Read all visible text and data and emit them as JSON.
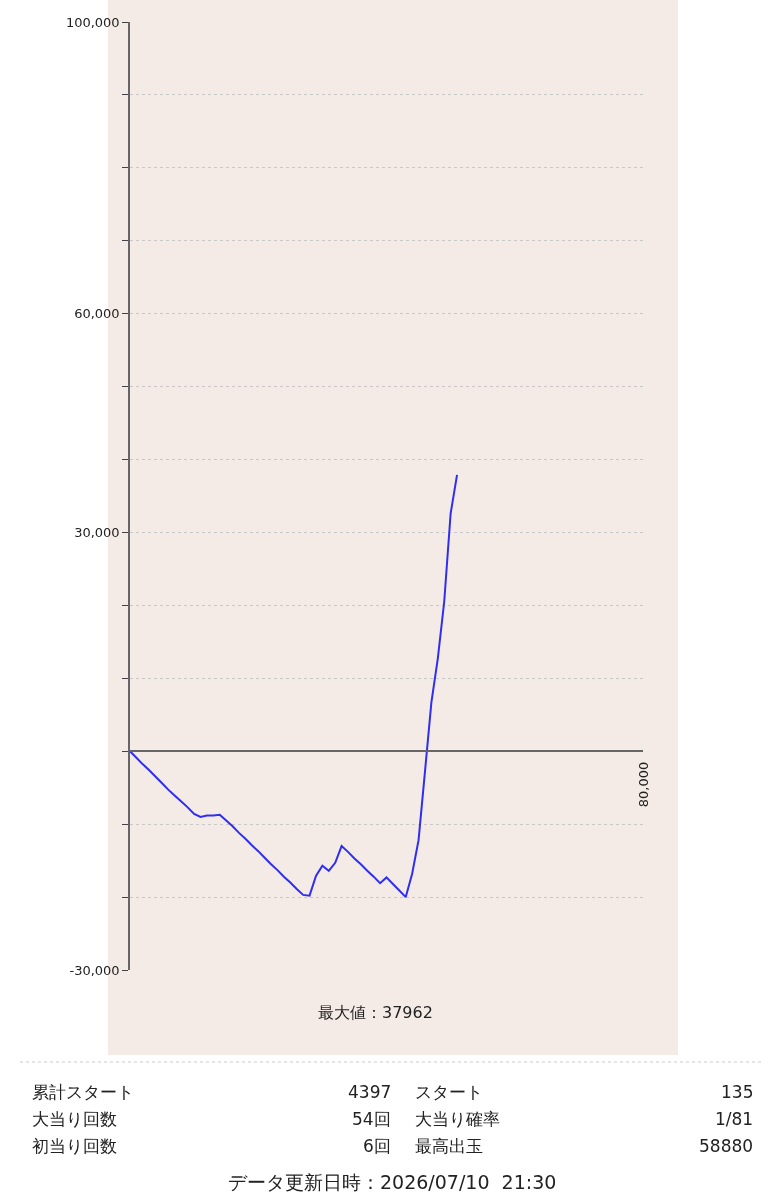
{
  "chart_data": {
    "type": "line",
    "categories": [
      null,
      null,
      null,
      null,
      null,
      null,
      null,
      null,
      null,
      null,
      null,
      null,
      null,
      null,
      null,
      null,
      null,
      null,
      null,
      null,
      null,
      null,
      null,
      null,
      null,
      null,
      null,
      null,
      null,
      null,
      null,
      null,
      null,
      null,
      null,
      null,
      null,
      null,
      null,
      null,
      null,
      null,
      null,
      null,
      null,
      null,
      null,
      null,
      null,
      null,
      null,
      null,
      null,
      null,
      null,
      null,
      null,
      null,
      null,
      null,
      null,
      null,
      null,
      null,
      null,
      null,
      null,
      null,
      null,
      null,
      null,
      null,
      null,
      null,
      null,
      null,
      null,
      null,
      null,
      null,
      null
    ],
    "series": [
      {
        "color": "#2e2ef2",
        "values": [
          0,
          -900,
          -1800,
          -2600,
          -3500,
          -4400,
          -5300,
          -6100,
          -6900,
          -7700,
          -8600,
          -9000,
          -8800,
          -8800,
          -8700,
          -9500,
          -10300,
          -11200,
          -12000,
          -12900,
          -13700,
          -14600,
          -15500,
          -16300,
          -17200,
          -18000,
          -18900,
          -19700,
          -19800,
          -17100,
          -15700,
          -16400,
          -15300,
          -13000,
          -13800,
          -14700,
          -15500,
          -16400,
          -17200,
          -18100,
          -17300,
          -18200,
          -19100,
          -20000,
          -16800,
          -12200,
          -2800,
          6700,
          12700,
          20500,
          32600,
          37900,
          null,
          null,
          null,
          null,
          null,
          null,
          null,
          null,
          null,
          null,
          null,
          null,
          null,
          null,
          null,
          null,
          null,
          null,
          null,
          null,
          null,
          null,
          null,
          null,
          null,
          null,
          null,
          null,
          null
        ]
      }
    ],
    "ylim": [
      -30000,
      100000
    ],
    "yticks": [
      {
        "value": 100000,
        "label": "100,000"
      },
      {
        "value": 90000,
        "label": null
      },
      {
        "value": 80000,
        "label": null
      },
      {
        "value": 70000,
        "label": null
      },
      {
        "value": 60000,
        "label": "60,000"
      },
      {
        "value": 50000,
        "label": null
      },
      {
        "value": 40000,
        "label": null
      },
      {
        "value": 30000,
        "label": "30,000"
      },
      {
        "value": 20000,
        "label": null
      },
      {
        "value": 10000,
        "label": null
      },
      {
        "value": 0,
        "label": null
      },
      {
        "value": -10000,
        "label": null
      },
      {
        "value": -20000,
        "label": null
      },
      {
        "value": -30000,
        "label": "-30,000"
      }
    ],
    "grid": "y",
    "marker": "none",
    "line_style": "solid",
    "annotations": [
      "80,000",
      "最大値：37962",
      "累計スタート",
      "4397",
      "スタート",
      "135",
      "大当り回数",
      "54回",
      "大当り確率",
      "1/81",
      "初当り回数",
      "6回",
      "最高出玉",
      "58880",
      "データ更新日時：2026/07/10  21:30"
    ]
  }
}
